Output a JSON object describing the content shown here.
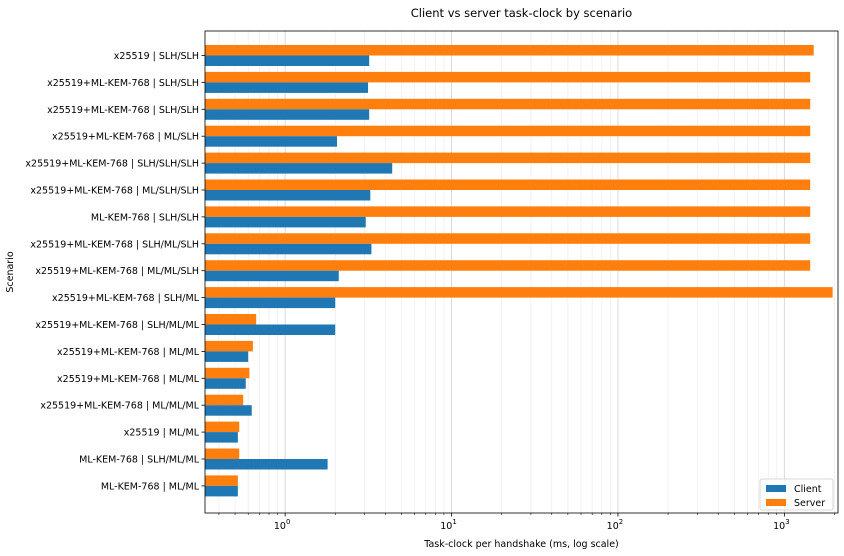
{
  "chart_data": {
    "type": "bar",
    "orientation": "horizontal",
    "title": "Client vs server task-clock by scenario",
    "xlabel": "Task-clock per handshake (ms, log scale)",
    "ylabel": "Scenario",
    "x_scale": "log",
    "xlim": [
      0.33,
      2100
    ],
    "x_ticks": [
      {
        "value": 1,
        "base": "10",
        "exp": "0"
      },
      {
        "value": 10,
        "base": "10",
        "exp": "1"
      },
      {
        "value": 100,
        "base": "10",
        "exp": "2"
      },
      {
        "value": 1000,
        "base": "10",
        "exp": "3"
      }
    ],
    "grid": "x-major-and-minor",
    "legend": "bottom-right",
    "categories": [
      "x25519 | SLH/SLH",
      "x25519+ML-KEM-768 | SLH/SLH",
      "x25519+ML-KEM-768 | SLH/SLH",
      "x25519+ML-KEM-768 | ML/SLH",
      "x25519+ML-KEM-768 | SLH/SLH/SLH",
      "x25519+ML-KEM-768 | ML/SLH/SLH",
      "ML-KEM-768 | SLH/SLH",
      "x25519+ML-KEM-768 | SLH/ML/SLH",
      "x25519+ML-KEM-768 | ML/ML/SLH",
      "x25519+ML-KEM-768 | SLH/ML",
      "x25519+ML-KEM-768 | SLH/ML/ML",
      "x25519+ML-KEM-768 | ML/ML",
      "x25519+ML-KEM-768 | ML/ML",
      "x25519+ML-KEM-768 | ML/ML/ML",
      "x25519 | ML/ML",
      "ML-KEM-768 | SLH/ML/ML",
      "ML-KEM-768 | ML/ML"
    ],
    "series": [
      {
        "name": "Client",
        "color": "#1f77b4",
        "values": [
          3.2,
          3.15,
          3.2,
          2.05,
          4.4,
          3.25,
          3.05,
          3.3,
          2.1,
          2.0,
          2.0,
          0.6,
          0.58,
          0.63,
          0.52,
          1.8,
          0.52
        ]
      },
      {
        "name": "Server",
        "color": "#ff7f0e",
        "values": [
          1500,
          1430,
          1430,
          1430,
          1430,
          1430,
          1430,
          1430,
          1430,
          1950,
          0.67,
          0.64,
          0.61,
          0.56,
          0.53,
          0.53,
          0.52
        ]
      }
    ]
  }
}
